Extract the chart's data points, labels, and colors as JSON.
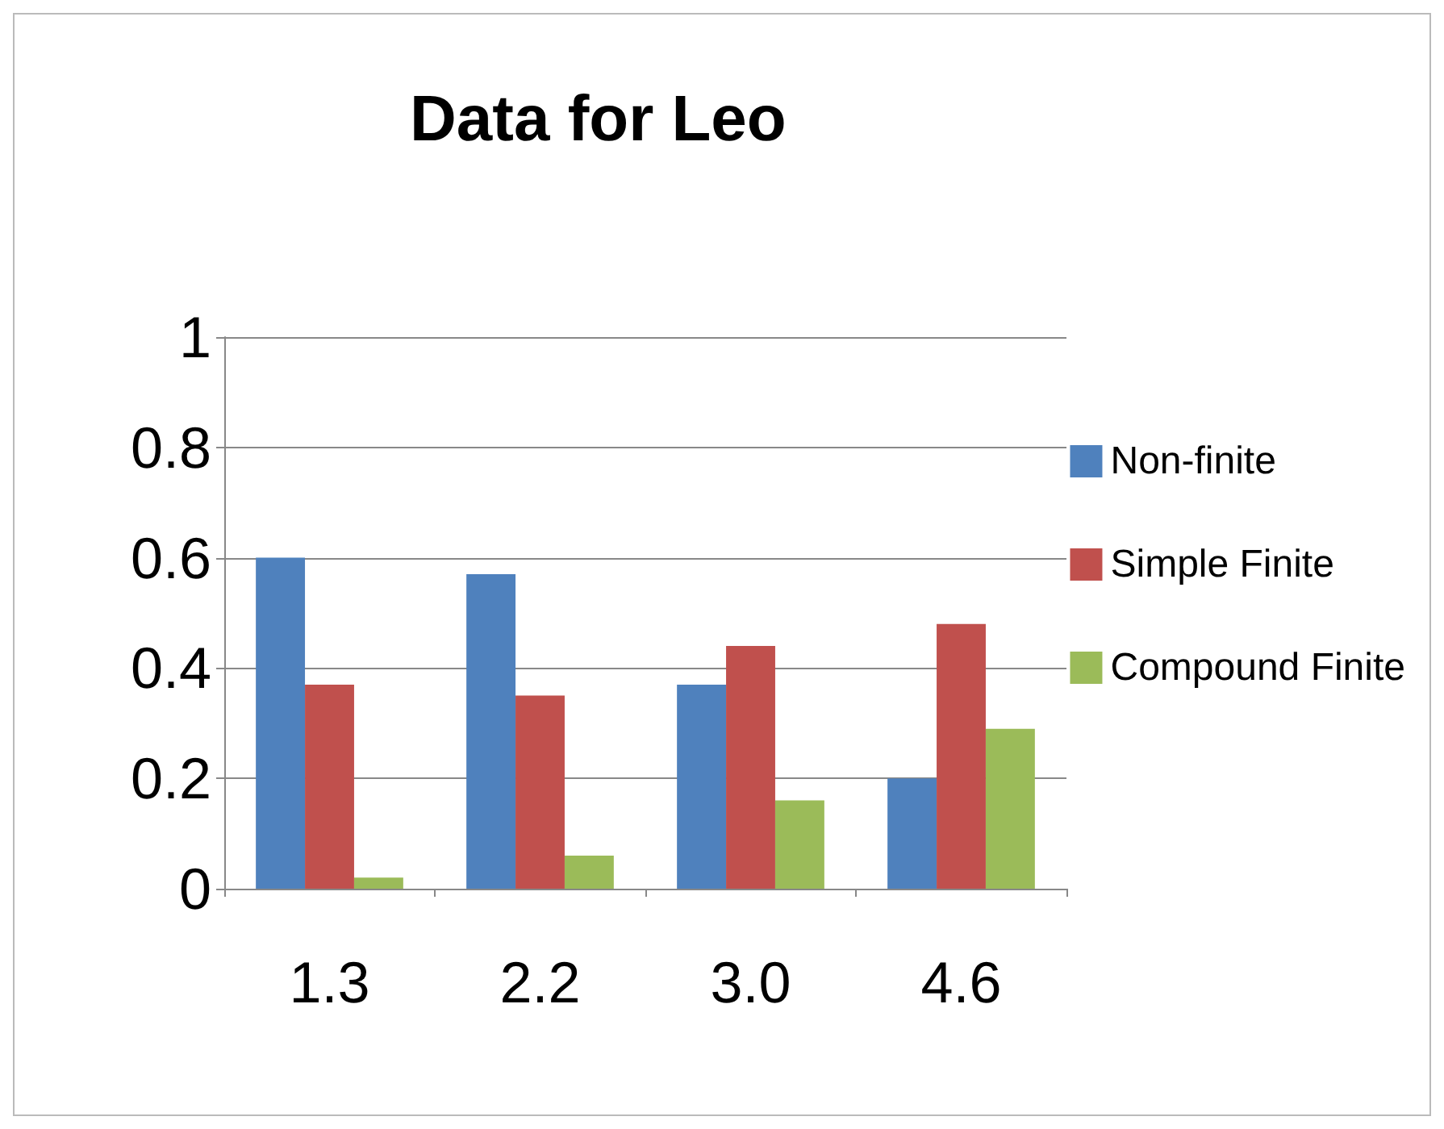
{
  "chart_data": {
    "type": "bar",
    "title": "Data for Leo",
    "categories": [
      "1.3",
      "2.2",
      "3.0",
      "4.6"
    ],
    "series": [
      {
        "name": "Non-finite",
        "color": "#4f81bd",
        "values": [
          0.6,
          0.57,
          0.37,
          0.2
        ]
      },
      {
        "name": "Simple Finite",
        "color": "#c0504d",
        "values": [
          0.37,
          0.35,
          0.44,
          0.48
        ]
      },
      {
        "name": "Compound Finite",
        "color": "#9bbb59",
        "values": [
          0.02,
          0.06,
          0.16,
          0.29
        ]
      }
    ],
    "ylim": [
      0,
      1
    ],
    "yticks": [
      0,
      0.2,
      0.4,
      0.6,
      0.8,
      1
    ],
    "grid": "y",
    "legend": "right"
  }
}
